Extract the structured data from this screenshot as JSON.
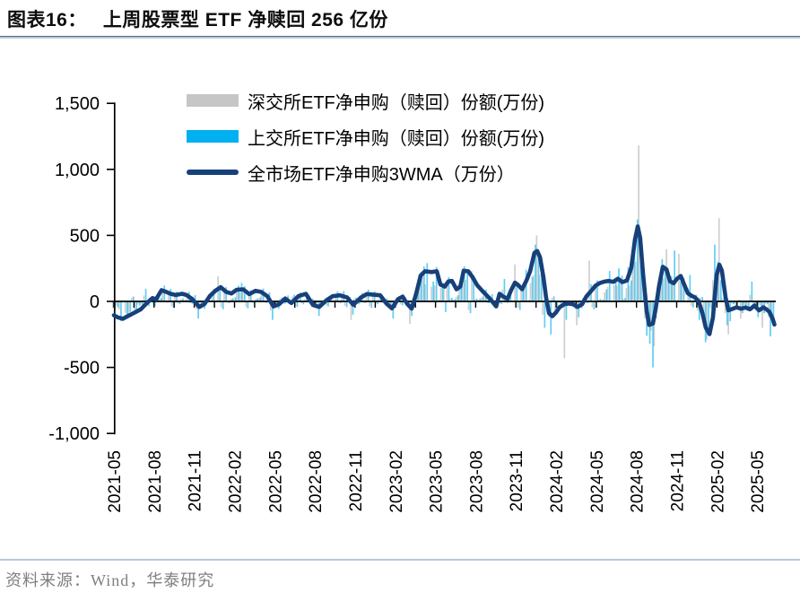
{
  "header": {
    "figure_label": "图表16：",
    "title": "上周股票型 ETF 净赎回 256 亿份"
  },
  "footer": {
    "source": "资料来源：Wind，华泰研究"
  },
  "chart_data": {
    "type": "bar+line",
    "title": "上周股票型 ETF 净赎回 256 亿份",
    "legend_position": "top-left-inside",
    "grid": false,
    "x_tick_labels": [
      "2021-05",
      "2021-08",
      "2021-11",
      "2022-02",
      "2022-05",
      "2022-08",
      "2022-11",
      "2023-02",
      "2023-05",
      "2023-08",
      "2023-11",
      "2024-02",
      "2024-05",
      "2024-08",
      "2024-11",
      "2025-02",
      "2025-05"
    ],
    "weeks_per_x_tick": 13,
    "x_range_weeks": 214,
    "y_tick_labels": [
      "1,500",
      "1,000",
      "500",
      "0",
      "-500",
      "-1,000"
    ],
    "y_tick_values": [
      1500,
      1000,
      500,
      0,
      -500,
      -1000
    ],
    "ylim": [
      -1000,
      1500
    ],
    "series": [
      {
        "name": "深交所ETF净申购（赎回）份额(万份)",
        "type": "bar",
        "color": "#c6c6c6"
      },
      {
        "name": "上交所ETF净申购（赎回）份额(万份)",
        "type": "bar",
        "color": "#00b0f0"
      },
      {
        "name": "全市场ETF净申购3WMA（万份）",
        "type": "line",
        "color": "#17407a"
      }
    ],
    "line_points_weekly": [
      [
        0,
        -105
      ],
      [
        1.2,
        -120
      ],
      [
        2.9,
        -132
      ],
      [
        4.6,
        -110
      ],
      [
        6.7,
        -85
      ],
      [
        8.7,
        -60
      ],
      [
        11,
        -5
      ],
      [
        12.5,
        25
      ],
      [
        13.6,
        15
      ],
      [
        15.4,
        85
      ],
      [
        17.1,
        70
      ],
      [
        18.3,
        58
      ],
      [
        20,
        48
      ],
      [
        22,
        58
      ],
      [
        23.5,
        48
      ],
      [
        25.2,
        20
      ],
      [
        27.6,
        -42
      ],
      [
        29.3,
        -20
      ],
      [
        31,
        40
      ],
      [
        32.8,
        80
      ],
      [
        34.5,
        108
      ],
      [
        36.3,
        72
      ],
      [
        38,
        60
      ],
      [
        39.7,
        88
      ],
      [
        41.8,
        92
      ],
      [
        43.8,
        55
      ],
      [
        45.8,
        80
      ],
      [
        47.6,
        72
      ],
      [
        49.6,
        40
      ],
      [
        51.6,
        -38
      ],
      [
        53.4,
        -22
      ],
      [
        55.4,
        22
      ],
      [
        57.4,
        -12
      ],
      [
        59.7,
        40
      ],
      [
        62.1,
        57
      ],
      [
        64.4,
        -28
      ],
      [
        66.4,
        -42
      ],
      [
        68.7,
        8
      ],
      [
        70.8,
        40
      ],
      [
        73.1,
        46
      ],
      [
        75.4,
        30
      ],
      [
        77.4,
        -26
      ],
      [
        79.8,
        28
      ],
      [
        81.8,
        56
      ],
      [
        84.1,
        50
      ],
      [
        86.1,
        46
      ],
      [
        88.2,
        -18
      ],
      [
        89.9,
        -52
      ],
      [
        91.9,
        18
      ],
      [
        93.4,
        36
      ],
      [
        94.8,
        -18
      ],
      [
        96.3,
        -55
      ],
      [
        97.7,
        55
      ],
      [
        99.2,
        195
      ],
      [
        100.6,
        228
      ],
      [
        102.7,
        222
      ],
      [
        104.4,
        228
      ],
      [
        105.6,
        128
      ],
      [
        107,
        112
      ],
      [
        108.2,
        152
      ],
      [
        109.3,
        155
      ],
      [
        110.8,
        92
      ],
      [
        112,
        112
      ],
      [
        113.1,
        232
      ],
      [
        114.6,
        228
      ],
      [
        116,
        182
      ],
      [
        117.5,
        122
      ],
      [
        119.2,
        78
      ],
      [
        120.7,
        42
      ],
      [
        122.1,
        6
      ],
      [
        123.6,
        -38
      ],
      [
        124.7,
        58
      ],
      [
        125.9,
        36
      ],
      [
        127.3,
        20
      ],
      [
        128.5,
        88
      ],
      [
        129.7,
        142
      ],
      [
        130.8,
        122
      ],
      [
        132,
        92
      ],
      [
        133.4,
        158
      ],
      [
        134.6,
        228
      ],
      [
        136,
        368
      ],
      [
        136.9,
        382
      ],
      [
        137.8,
        335
      ],
      [
        138.9,
        185
      ],
      [
        139.8,
        25
      ],
      [
        140.7,
        -88
      ],
      [
        141.8,
        -112
      ],
      [
        143,
        -82
      ],
      [
        144.1,
        -45
      ],
      [
        145.6,
        -22
      ],
      [
        147,
        -16
      ],
      [
        148.5,
        -22
      ],
      [
        149.9,
        -42
      ],
      [
        151.4,
        -22
      ],
      [
        152.8,
        38
      ],
      [
        154.3,
        78
      ],
      [
        155.7,
        118
      ],
      [
        157.2,
        140
      ],
      [
        158.6,
        150
      ],
      [
        160.1,
        155
      ],
      [
        161.5,
        148
      ],
      [
        163,
        172
      ],
      [
        164.4,
        146
      ],
      [
        165.9,
        158
      ],
      [
        167.3,
        255
      ],
      [
        168.5,
        470
      ],
      [
        169.4,
        568
      ],
      [
        170.2,
        480
      ],
      [
        171.1,
        210
      ],
      [
        172.3,
        -75
      ],
      [
        173.1,
        -178
      ],
      [
        174.3,
        -168
      ],
      [
        175.2,
        -55
      ],
      [
        176.3,
        118
      ],
      [
        177.5,
        262
      ],
      [
        178.7,
        242
      ],
      [
        179.8,
        152
      ],
      [
        181,
        138
      ],
      [
        182.1,
        172
      ],
      [
        183.3,
        192
      ],
      [
        184.5,
        122
      ],
      [
        185.6,
        62
      ],
      [
        186.8,
        42
      ],
      [
        187.9,
        30
      ],
      [
        189.1,
        2
      ],
      [
        190.3,
        -88
      ],
      [
        191.4,
        -198
      ],
      [
        192.6,
        -248
      ],
      [
        193.7,
        -122
      ],
      [
        194.9,
        198
      ],
      [
        195.8,
        278
      ],
      [
        196.6,
        232
      ],
      [
        197.8,
        32
      ],
      [
        198.7,
        -68
      ],
      [
        199.9,
        -58
      ],
      [
        201.3,
        -45
      ],
      [
        202.8,
        -56
      ],
      [
        204.2,
        -46
      ],
      [
        205.7,
        -60
      ],
      [
        207.1,
        -32
      ],
      [
        208.6,
        -68
      ],
      [
        210,
        -45
      ],
      [
        211,
        -60
      ],
      [
        212,
        -80
      ],
      [
        213,
        -130
      ],
      [
        213.6,
        -175
      ]
    ],
    "weekly_bars_estimate": {
      "note": "weekly net subscription bars, estimated from pixels; sh = SSE (blue), sz = SZSE (grey)",
      "gain_cycle": [
        1.55,
        0.3,
        1.2,
        -0.4,
        1.85,
        0.75,
        -0.15,
        1.3
      ],
      "base_cycle": [
        55,
        -35,
        78,
        -58,
        30,
        -72,
        45,
        -48
      ],
      "sh_share": 0.62,
      "sz_share": 0.46,
      "sh_clamp": [
        -340,
        390
      ],
      "sz_clamp": [
        -330,
        350
      ],
      "overrides": {
        "2": [
          -150,
          -60
        ],
        "5": [
          -80,
          -120
        ],
        "10": [
          95,
          45
        ],
        "16": [
          120,
          60
        ],
        "27": [
          -130,
          -60
        ],
        "34": [
          110,
          190
        ],
        "41": [
          140,
          70
        ],
        "51": [
          -140,
          -70
        ],
        "66": [
          -110,
          -55
        ],
        "77": [
          -100,
          -140
        ],
        "90": [
          -130,
          -70
        ],
        "96": [
          -110,
          -170
        ],
        "99": [
          220,
          110
        ],
        "101": [
          290,
          130
        ],
        "104": [
          260,
          120
        ],
        "107": [
          -80,
          140
        ],
        "113": [
          265,
          125
        ],
        "116": [
          200,
          230
        ],
        "126": [
          170,
          90
        ],
        "130": [
          130,
          280
        ],
        "133": [
          240,
          120
        ],
        "136": [
          430,
          200
        ],
        "137": [
          380,
          500
        ],
        "139": [
          -200,
          -100
        ],
        "141": [
          -250,
          -120
        ],
        "146": [
          -140,
          -430
        ],
        "150": [
          -120,
          -180
        ],
        "154": [
          130,
          310
        ],
        "160": [
          230,
          110
        ],
        "163": [
          250,
          120
        ],
        "166": [
          260,
          100
        ],
        "168": [
          400,
          250
        ],
        "169": [
          620,
          300
        ],
        "170": [
          350,
          1180
        ],
        "171": [
          260,
          420
        ],
        "172": [
          -260,
          -130
        ],
        "173": [
          -320,
          -160
        ],
        "174": [
          -500,
          -220
        ],
        "175": [
          -130,
          -340
        ],
        "177": [
          320,
          150
        ],
        "179": [
          200,
          395
        ],
        "181": [
          385,
          140
        ],
        "183": [
          150,
          360
        ],
        "186": [
          200,
          100
        ],
        "189": [
          -140,
          -70
        ],
        "191": [
          -310,
          -130
        ],
        "192": [
          -210,
          -290
        ],
        "194": [
          430,
          160
        ],
        "195": [
          300,
          200
        ],
        "196": [
          160,
          630
        ],
        "198": [
          -180,
          -90
        ],
        "199": [
          -150,
          -250
        ],
        "203": [
          -90,
          -130
        ],
        "206": [
          150,
          50
        ],
        "208": [
          -120,
          -60
        ],
        "210": [
          -90,
          -200
        ],
        "212": [
          -265,
          -120
        ],
        "213": [
          -180,
          -90
        ]
      }
    }
  }
}
